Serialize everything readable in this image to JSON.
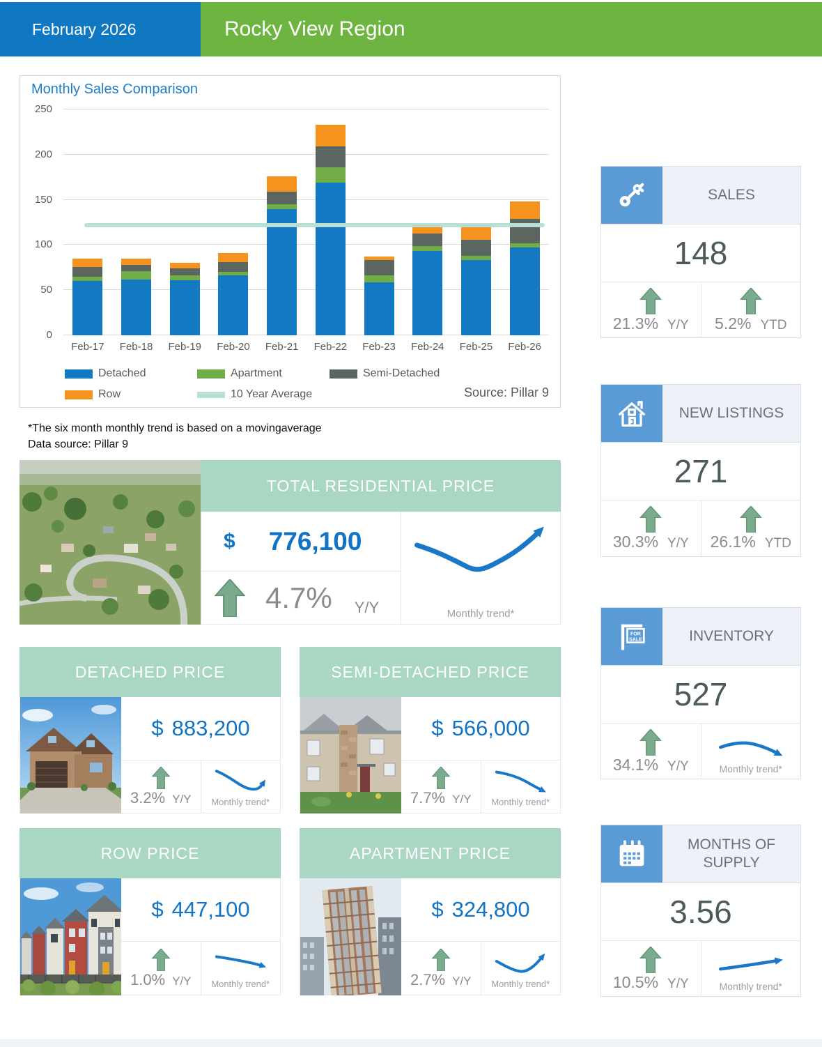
{
  "header": {
    "date": "February 2026",
    "region": "Rocky View Region"
  },
  "chart": {
    "title": "Monthly Sales Comparison",
    "source": "Source: Pillar 9"
  },
  "footnotes": {
    "line1": "*The six month monthly trend is based on a movingaverage",
    "line2": "Data source: Pillar 9"
  },
  "chart_data": {
    "type": "bar",
    "stacked": true,
    "title": "Monthly Sales Comparison",
    "categories": [
      "Feb-17",
      "Feb-18",
      "Feb-19",
      "Feb-20",
      "Feb-21",
      "Feb-22",
      "Feb-23",
      "Feb-24",
      "Feb-25",
      "Feb-26"
    ],
    "series": [
      {
        "name": "Detached",
        "color": "#1379C3",
        "values": [
          60,
          62,
          61,
          66,
          140,
          169,
          59,
          93,
          83,
          97
        ]
      },
      {
        "name": "Apartment",
        "color": "#70AD47",
        "values": [
          5,
          9,
          5,
          4,
          5,
          17,
          7,
          6,
          5,
          5
        ]
      },
      {
        "name": "Semi-Detached",
        "color": "#5B6660",
        "values": [
          11,
          7,
          8,
          11,
          14,
          23,
          17,
          14,
          18,
          27
        ]
      },
      {
        "name": "Row",
        "color": "#F6921E",
        "values": [
          9,
          7,
          6,
          10,
          17,
          24,
          4,
          9,
          16,
          19
        ]
      }
    ],
    "average_line": {
      "name": "10 Year Average",
      "value": 122,
      "color": "#B8DFD5"
    },
    "ylim": [
      0,
      250
    ],
    "yticks": [
      0,
      50,
      100,
      150,
      200,
      250
    ],
    "grid": true,
    "legend_position": "bottom",
    "xlabel": "",
    "ylabel": ""
  },
  "stats": [
    {
      "title": "SALES",
      "icon": "keys-icon",
      "value": "148",
      "cell1": {
        "pct": "21.3%",
        "label": "Y/Y"
      },
      "cell2": {
        "pct": "5.2%",
        "label": "YTD"
      }
    },
    {
      "title": "NEW LISTINGS",
      "icon": "house-icon",
      "value": "271",
      "cell1": {
        "pct": "30.3%",
        "label": "Y/Y"
      },
      "cell2": {
        "pct": "26.1%",
        "label": "YTD"
      }
    },
    {
      "title": "INVENTORY",
      "icon": "for-sale-sign-icon",
      "value": "527",
      "cell1": {
        "pct": "34.1%",
        "label": "Y/Y"
      },
      "trend_label": "Monthly trend*"
    },
    {
      "title": "MONTHS OF SUPPLY",
      "icon": "calendar-icon",
      "value": "3.56",
      "cell1": {
        "pct": "10.5%",
        "label": "Y/Y"
      },
      "trend_label": "Monthly trend*"
    }
  ],
  "total_price": {
    "title": "TOTAL RESIDENTIAL PRICE",
    "currency": "$",
    "amount": "776,100",
    "pct": "4.7%",
    "pct_label": "Y/Y",
    "trend_label": "Monthly trend*"
  },
  "price_cards": [
    {
      "title": "DETACHED PRICE",
      "currency": "$",
      "amount": "883,200",
      "pct": "3.2%",
      "pct_label": "Y/Y",
      "trend_label": "Monthly trend*"
    },
    {
      "title": "SEMI-DETACHED PRICE",
      "currency": "$",
      "amount": "566,000",
      "pct": "7.7%",
      "pct_label": "Y/Y",
      "trend_label": "Monthly trend*"
    },
    {
      "title": "ROW PRICE",
      "currency": "$",
      "amount": "447,100",
      "pct": "1.0%",
      "pct_label": "Y/Y",
      "trend_label": "Monthly trend*"
    },
    {
      "title": "APARTMENT PRICE",
      "currency": "$",
      "amount": "324,800",
      "pct": "2.7%",
      "pct_label": "Y/Y",
      "trend_label": "Monthly trend*"
    }
  ],
  "colors": {
    "header_blue": "#1078C2",
    "header_green": "#6EB440",
    "accent_blue": "#1273C4",
    "teal_banner": "#A9D7C3",
    "icon_blue": "#5B9BD5",
    "up_arrow_green": "#79AB8C",
    "stat_number": "#4C5B53",
    "muted_text": "#8A8A8A",
    "trend_blue": "#1B78C8"
  }
}
